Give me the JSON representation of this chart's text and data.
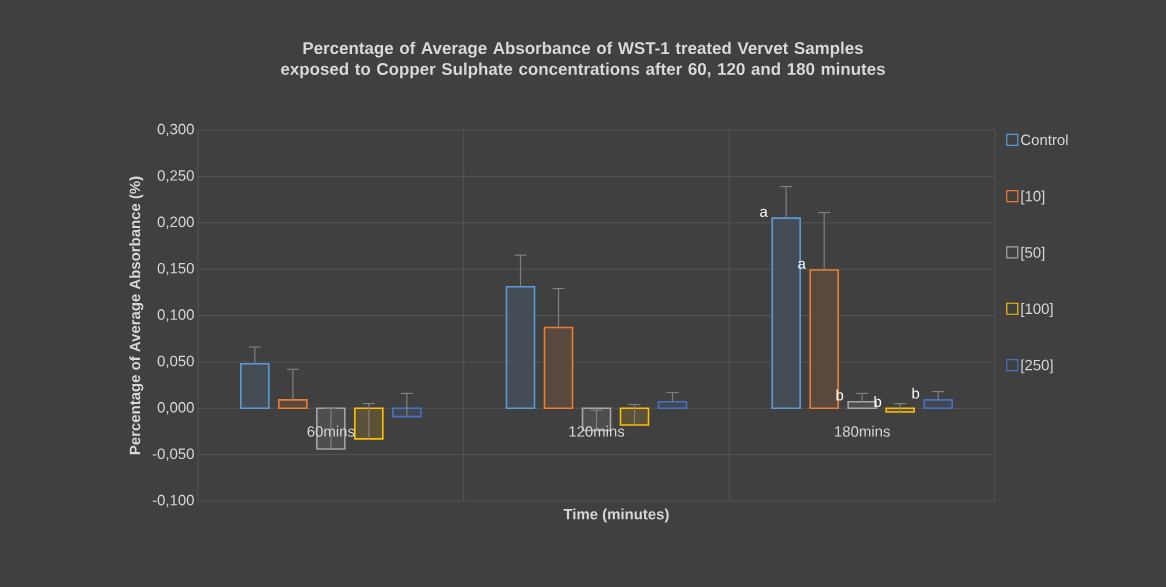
{
  "chart_data": {
    "type": "bar",
    "title": "Percentage of Average Absorbance of WST-1 treated Vervet Samples exposed to Copper Sulphate concentrations after 60, 120 and 180 minutes",
    "xlabel": "Time (minutes)",
    "ylabel": "Percentage of Average Absorbance (%)",
    "categories": [
      "60mins",
      "120mins",
      "180mins"
    ],
    "series": [
      {
        "name": "Control",
        "color": "#5b9bd5",
        "values": [
          0.048,
          0.131,
          0.205
        ],
        "errors": [
          [
            0.048,
            0.066
          ],
          [
            0.131,
            0.165
          ],
          [
            0.205,
            0.239
          ]
        ]
      },
      {
        "name": "[10]",
        "color": "#ed7d31",
        "values": [
          0.009,
          0.087,
          0.149
        ],
        "errors": [
          [
            0.009,
            0.042
          ],
          [
            0.087,
            0.129
          ],
          [
            0.149,
            0.211
          ]
        ]
      },
      {
        "name": "[50]",
        "color": "#a5a5a5",
        "values": [
          -0.044,
          -0.024,
          0.007
        ],
        "errors": [
          [
            -0.044,
            0.0
          ],
          [
            -0.024,
            -0.002
          ],
          [
            0.007,
            0.016
          ]
        ]
      },
      {
        "name": "[100]",
        "color": "#ffc000",
        "values": [
          -0.033,
          -0.018,
          -0.004
        ],
        "errors": [
          [
            -0.033,
            0.005
          ],
          [
            -0.018,
            0.004
          ],
          [
            -0.004,
            0.005
          ]
        ]
      },
      {
        "name": "[250]",
        "color": "#4472c4",
        "values": [
          -0.009,
          0.007,
          0.009
        ],
        "errors": [
          [
            -0.009,
            0.016
          ],
          [
            0.007,
            0.017
          ],
          [
            0.009,
            0.018
          ]
        ]
      }
    ],
    "ylim": [
      -0.1,
      0.3
    ],
    "yticks": [
      {
        "value": -0.1,
        "label": "-0,100"
      },
      {
        "value": -0.05,
        "label": "-0,050"
      },
      {
        "value": 0,
        "label": "0,000"
      },
      {
        "value": 0.05,
        "label": "0,050"
      },
      {
        "value": 0.1,
        "label": "0,100"
      },
      {
        "value": 0.15,
        "label": "0,150"
      },
      {
        "value": 0.2,
        "label": "0,200"
      },
      {
        "value": 0.25,
        "label": "0,250"
      },
      {
        "value": 0.3,
        "label": "0,300"
      }
    ],
    "annotations": [
      "a",
      "a",
      "b",
      "b",
      "b"
    ],
    "grid": true,
    "legend": "right"
  }
}
